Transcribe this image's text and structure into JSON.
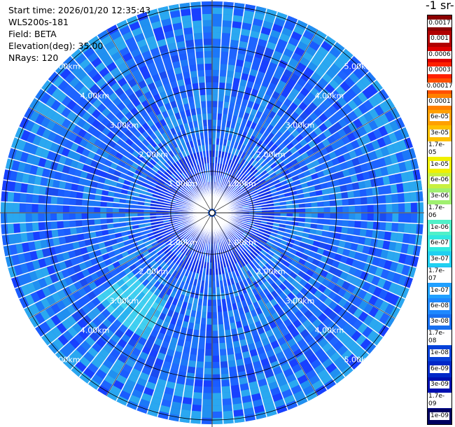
{
  "info": {
    "start_time": "Start time: 2026/01/20 12:35:43",
    "instrument": "WLS200s-181",
    "field": "Field: BETA",
    "elevation": "Elevation(deg): 35.00",
    "nrays": "NRays: 120"
  },
  "colorbar_title": "-1 sr-",
  "chart_data": {
    "type": "ppi",
    "field": "BETA",
    "elevation_deg": 35.0,
    "n_rays": 120,
    "range_rings_km": [
      1,
      2,
      3,
      4,
      5
    ],
    "ring_labels": [
      "1.00km",
      "2.00km",
      "3.00km",
      "4.00km",
      "5.00km"
    ],
    "max_range_km": 5.1,
    "grid": true,
    "colorbar": {
      "labels": [
        "0.0017",
        "0.001",
        "0.0006",
        "0.0003",
        "0.00017",
        "0.0001",
        "6e-05",
        "3e-05",
        "1.7e-05",
        "1e-05",
        "6e-06",
        "3e-06",
        "1.7e-06",
        "1e-06",
        "6e-07",
        "3e-07",
        "1.7e-07",
        "1e-07",
        "6e-08",
        "3e-08",
        "1.7e-08",
        "1e-08",
        "6e-09",
        "3e-09",
        "1.7e-09",
        "1e-09"
      ],
      "colors": [
        "#8b0000",
        "#b00000",
        "#e00000",
        "#ff2000",
        "#ff5000",
        "#ff8000",
        "#ffa000",
        "#ffc000",
        "#ffe000",
        "#f0f000",
        "#c8f040",
        "#a0f070",
        "#78f0a0",
        "#50f0c8",
        "#30e8e0",
        "#20d0f0",
        "#20b8f8",
        "#20a0ff",
        "#1e88ff",
        "#1870f0",
        "#1058e0",
        "#0840d8",
        "#0028c8",
        "#0010b0",
        "#000890",
        "#000060"
      ]
    }
  }
}
